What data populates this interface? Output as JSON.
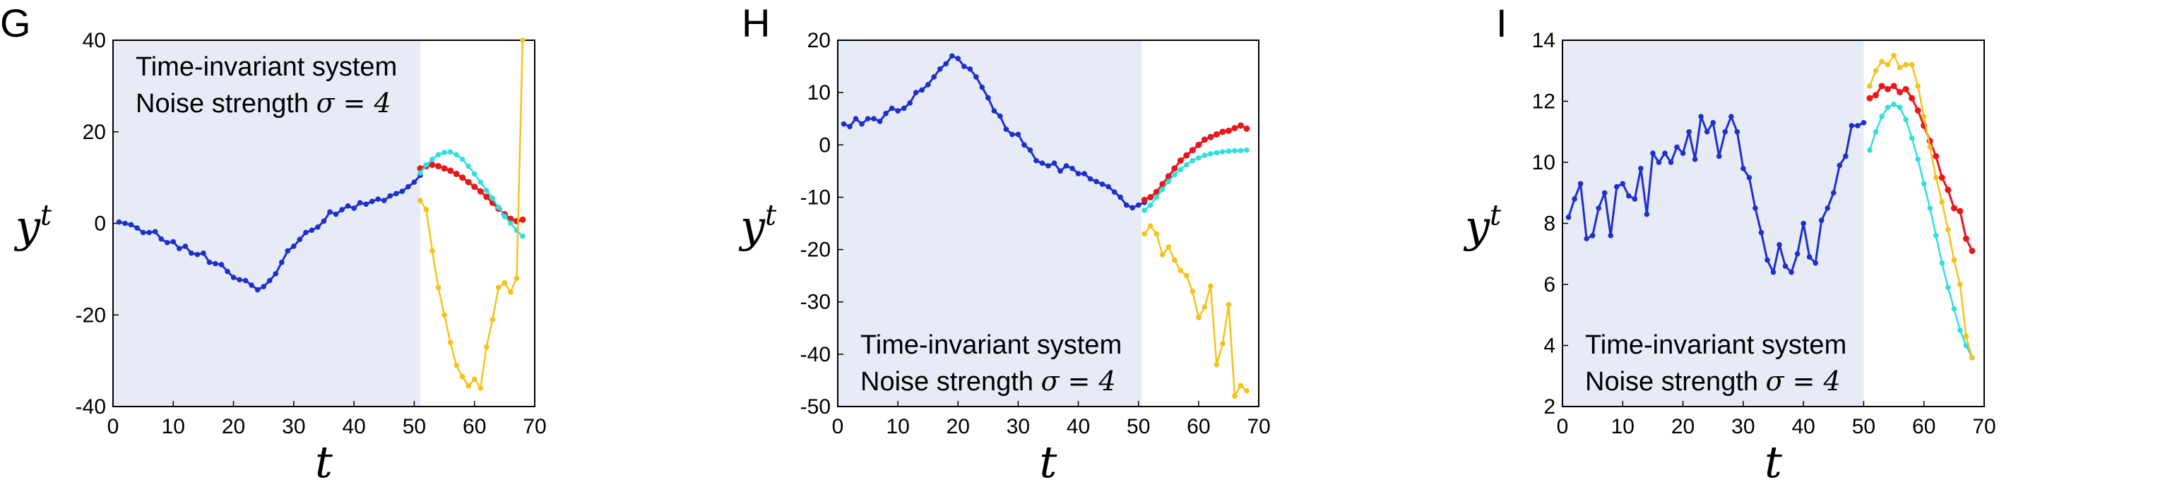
{
  "colors": {
    "shade": "#e7ebf5",
    "observed": "#1f2fcc",
    "red": "#e8171b",
    "cyan": "#33dede",
    "yellow": "#f5c21c"
  },
  "chart_data": [
    {
      "type": "line",
      "panel_label": "G",
      "xlabel": "t",
      "ylabel_base": "y",
      "ylabel_sup": "t",
      "xlim": [
        0,
        70
      ],
      "ylim": [
        -40,
        40
      ],
      "xticks": [
        0,
        10,
        20,
        30,
        40,
        50,
        60,
        70
      ],
      "yticks": [
        -40,
        -20,
        0,
        20,
        40
      ],
      "ytick_labels": [
        "-40",
        "-20",
        "0",
        "20",
        "40"
      ],
      "shaded_region": [
        0,
        51
      ],
      "annotation": {
        "line1": "Time-invariant system",
        "line2_text": "Noise strength ",
        "line2_math": "σ = 4",
        "position": "top-left"
      },
      "series": [
        {
          "color_key": "observed",
          "markers": true,
          "x_start": 1,
          "values": [
            0.3,
            0,
            -0.3,
            -1,
            -2,
            -2,
            -1.8,
            -3.4,
            -4.2,
            -4,
            -5.5,
            -5,
            -6.5,
            -6.8,
            -6.5,
            -8.5,
            -8.8,
            -9,
            -10.5,
            -11.8,
            -12.3,
            -12.5,
            -13.5,
            -14.5,
            -13.8,
            -12.5,
            -11,
            -8.5,
            -6,
            -5,
            -3.5,
            -2,
            -1.5,
            -0.8,
            0.5,
            2.5,
            2,
            3,
            3.8,
            3.3,
            4.5,
            4.2,
            4.8,
            5.3,
            5,
            6,
            6.5,
            7,
            8,
            9,
            10.5
          ]
        },
        {
          "color_key": "red",
          "markers": true,
          "x_start": 51,
          "values": [
            12,
            12.5,
            12.8,
            12.5,
            12,
            11.5,
            10.8,
            10,
            9,
            8,
            7,
            5.8,
            4.5,
            3.2,
            2,
            1,
            0.5,
            0.8
          ]
        },
        {
          "color_key": "cyan",
          "markers": true,
          "x_start": 51,
          "values": [
            11,
            12.8,
            14,
            15,
            15.5,
            15.6,
            15,
            14,
            12.5,
            10.8,
            9,
            7.2,
            5.5,
            3.5,
            1.5,
            0,
            -1.5,
            -2.8
          ]
        },
        {
          "color_key": "yellow",
          "markers": true,
          "x_start": 51,
          "values": [
            5,
            3,
            -6,
            -14,
            -20,
            -26,
            -31,
            -33.5,
            -35.5,
            -34,
            -36,
            -27,
            -21,
            -14,
            -13,
            -15,
            -12,
            40
          ]
        }
      ]
    },
    {
      "type": "line",
      "panel_label": "H",
      "xlabel": "t",
      "ylabel_base": "y",
      "ylabel_sup": "t",
      "xlim": [
        0,
        70
      ],
      "ylim": [
        -50,
        20
      ],
      "xticks": [
        0,
        10,
        20,
        30,
        40,
        50,
        60,
        70
      ],
      "yticks": [
        -50,
        -40,
        -30,
        -20,
        -10,
        0,
        10,
        20
      ],
      "ytick_labels": [
        "-50",
        "-40",
        "-30",
        "-20",
        "-10",
        "0",
        "10",
        "20"
      ],
      "shaded_region": [
        0,
        50.5
      ],
      "annotation": {
        "line1": "Time-invariant system",
        "line2_text": "Noise strength ",
        "line2_math": "σ = 4",
        "position": "bottom-left"
      },
      "series": [
        {
          "color_key": "observed",
          "markers": true,
          "x_start": 1,
          "values": [
            4,
            3.5,
            5,
            4,
            5,
            5,
            4.5,
            6,
            7,
            6.5,
            7,
            8,
            10,
            10.5,
            11.5,
            13,
            14.5,
            15.5,
            17,
            16.5,
            15,
            14.5,
            13,
            11,
            9,
            6.5,
            5.5,
            3,
            2,
            2,
            0,
            -1,
            -3,
            -3.5,
            -4,
            -3.5,
            -5,
            -4,
            -4.5,
            -5.5,
            -5.5,
            -6.5,
            -7,
            -7.5,
            -8,
            -9,
            -10,
            -11.5,
            -12,
            -11.5,
            -11
          ]
        },
        {
          "color_key": "red",
          "markers": true,
          "x_start": 51,
          "values": [
            -10.5,
            -10,
            -9,
            -7.5,
            -6,
            -4.5,
            -3,
            -2,
            -1,
            0,
            1,
            1.5,
            2,
            2.5,
            2.7,
            3.2,
            3.7,
            3.1
          ]
        },
        {
          "color_key": "cyan",
          "markers": true,
          "x_start": 51,
          "values": [
            -12.5,
            -11.5,
            -10,
            -8.5,
            -7,
            -5.7,
            -4.7,
            -3.8,
            -3,
            -2.5,
            -2,
            -1.7,
            -1.5,
            -1.3,
            -1.2,
            -1.1,
            -1.1,
            -1
          ]
        },
        {
          "color_key": "yellow",
          "markers": true,
          "x_start": 51,
          "values": [
            -17,
            -15.5,
            -17,
            -21,
            -19.5,
            -22,
            -24,
            -25,
            -28,
            -33,
            -31,
            -27,
            -42,
            -38,
            -30.5,
            -48,
            -46,
            -47
          ]
        }
      ]
    },
    {
      "type": "line",
      "panel_label": "I",
      "xlabel": "t",
      "ylabel_base": "y",
      "ylabel_sup": "t",
      "xlim": [
        0,
        70
      ],
      "ylim": [
        2,
        14
      ],
      "xticks": [
        0,
        10,
        20,
        30,
        40,
        50,
        60,
        70
      ],
      "yticks": [
        2,
        4,
        6,
        8,
        10,
        12,
        14
      ],
      "ytick_labels": [
        "2",
        "4",
        "6",
        "8",
        "10",
        "12",
        "14"
      ],
      "shaded_region": [
        0,
        50
      ],
      "annotation": {
        "line1": "Time-invariant system",
        "line2_text": "Noise strength ",
        "line2_math": "σ = 4",
        "position": "bottom-left"
      },
      "series": [
        {
          "color_key": "observed",
          "markers": true,
          "x_start": 1,
          "values": [
            8.2,
            8.8,
            9.3,
            7.5,
            7.6,
            8.5,
            9,
            7.6,
            9.2,
            9.3,
            8.9,
            8.8,
            9.8,
            8.3,
            10.3,
            10,
            10.3,
            10,
            10.5,
            10.3,
            11,
            10.1,
            11.5,
            11,
            11.3,
            10.2,
            11,
            11.5,
            11,
            9.8,
            9.5,
            8.5,
            7.7,
            6.8,
            6.4,
            7.3,
            6.6,
            6.4,
            7,
            8,
            6.9,
            6.7,
            8.1,
            8.5,
            9,
            9.9,
            10.2,
            11.2,
            11.2,
            11.3
          ]
        },
        {
          "color_key": "red",
          "markers": true,
          "x_start": 51,
          "values": [
            12.1,
            12.2,
            12.5,
            12.4,
            12.5,
            12.3,
            12.4,
            12.1,
            11.7,
            11.2,
            10.7,
            10.2,
            9.5,
            9.1,
            8.5,
            8.4,
            7.5,
            7.1
          ]
        },
        {
          "color_key": "cyan",
          "markers": true,
          "x_start": 51,
          "values": [
            10.4,
            11,
            11.5,
            11.8,
            11.9,
            11.8,
            11.4,
            10.8,
            10.1,
            9.3,
            8.5,
            7.6,
            6.7,
            5.9,
            5.2,
            4.5,
            4,
            3.6
          ]
        },
        {
          "color_key": "yellow",
          "markers": true,
          "x_start": 51,
          "values": [
            12.5,
            13,
            13.3,
            13.2,
            13.5,
            13.1,
            13.2,
            13.2,
            12.5,
            11.5,
            10.5,
            9.5,
            8.7,
            7.8,
            6.8,
            6,
            4.3,
            3.6
          ]
        }
      ]
    }
  ]
}
